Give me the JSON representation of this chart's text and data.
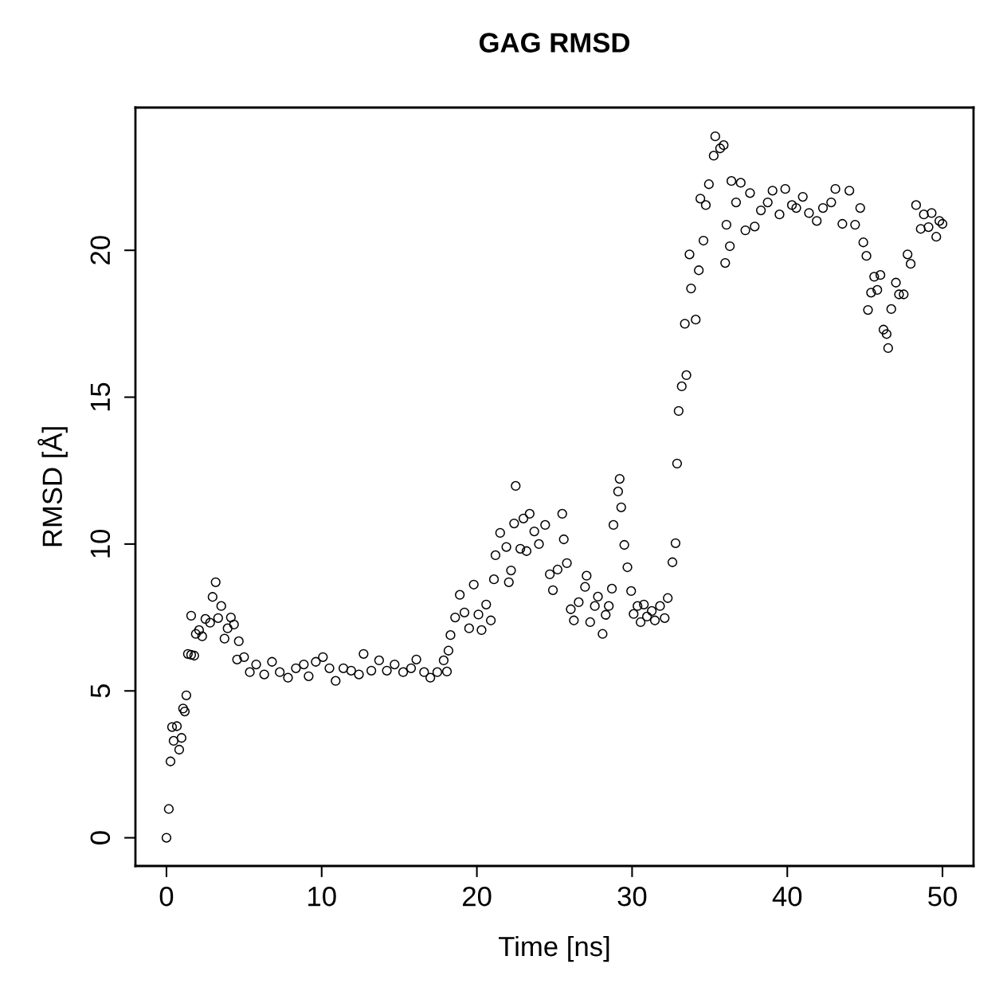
{
  "chart_data": {
    "type": "scatter",
    "title": "GAG RMSD",
    "xlabel": "Time [ns]",
    "ylabel": "RMSD [Å]",
    "xlim": [
      -2,
      52
    ],
    "ylim": [
      -0.96,
      24.86
    ],
    "xticks": [
      0,
      10,
      20,
      30,
      40,
      50
    ],
    "yticks": [
      0,
      5,
      10,
      15,
      20
    ],
    "grid": false,
    "legend": false,
    "marker": "circle",
    "series": [
      {
        "color": "#000000",
        "x": [
          0,
          0.15,
          0.26,
          0.36,
          0.46,
          0.67,
          0.82,
          0.97,
          1.07,
          1.18,
          1.28,
          1.38,
          1.59,
          1.59,
          1.79,
          1.89,
          2.1,
          2.3,
          2.51,
          2.81,
          2.97,
          3.17,
          3.33,
          3.53,
          3.74,
          3.94,
          4.15,
          4.35,
          4.66,
          4.55,
          5.0,
          5.37,
          5.78,
          6.3,
          6.8,
          7.3,
          7.83,
          8.34,
          8.85,
          9.16,
          9.62,
          10.08,
          10.5,
          10.9,
          11.4,
          11.9,
          12.4,
          12.7,
          13.2,
          13.7,
          14.2,
          14.7,
          15.25,
          15.76,
          16.1,
          16.6,
          17.0,
          17.45,
          17.86,
          18.07,
          18.17,
          18.3,
          18.6,
          18.9,
          19.2,
          19.5,
          19.8,
          20.1,
          20.3,
          20.6,
          20.9,
          21.1,
          21.2,
          21.5,
          21.9,
          22.06,
          22.2,
          22.4,
          22.5,
          22.8,
          23.0,
          23.2,
          23.4,
          23.7,
          24.0,
          24.4,
          24.7,
          24.9,
          25.2,
          25.5,
          25.6,
          25.8,
          26.05,
          26.25,
          26.56,
          26.97,
          27.07,
          27.3,
          27.6,
          27.8,
          28.1,
          28.3,
          28.5,
          28.7,
          28.8,
          29.1,
          29.2,
          29.3,
          29.5,
          29.7,
          29.94,
          30.1,
          30.35,
          30.55,
          30.76,
          30.96,
          31.27,
          31.47,
          31.8,
          32.1,
          32.3,
          32.6,
          32.8,
          32.9,
          33.0,
          33.2,
          33.4,
          33.5,
          33.7,
          33.8,
          34.1,
          34.3,
          34.4,
          34.6,
          34.75,
          34.95,
          35.26,
          35.36,
          35.67,
          35.9,
          36.0,
          36.08,
          36.3,
          36.4,
          36.7,
          37.0,
          37.3,
          37.6,
          37.9,
          38.3,
          38.74,
          39.05,
          39.5,
          39.87,
          40.3,
          40.58,
          41.0,
          41.4,
          41.9,
          42.3,
          42.83,
          43.1,
          43.55,
          44.0,
          44.37,
          44.7,
          44.9,
          45.1,
          45.2,
          45.4,
          45.6,
          45.8,
          46.0,
          46.2,
          46.4,
          46.5,
          46.7,
          47.0,
          47.2,
          47.5,
          47.75,
          47.95,
          48.3,
          48.6,
          48.8,
          49.1,
          49.3,
          49.6,
          49.8,
          50.0
        ],
        "values": [
          0,
          0.98,
          2.6,
          3.77,
          3.3,
          3.8,
          3.0,
          3.4,
          4.4,
          4.3,
          4.85,
          6.26,
          6.23,
          7.56,
          6.2,
          6.94,
          7.07,
          6.86,
          7.45,
          7.32,
          8.2,
          8.7,
          7.48,
          7.89,
          6.78,
          7.13,
          7.5,
          7.26,
          6.69,
          6.07,
          6.15,
          5.64,
          5.9,
          5.56,
          5.99,
          5.64,
          5.45,
          5.77,
          5.9,
          5.5,
          5.99,
          6.15,
          5.77,
          5.34,
          5.77,
          5.69,
          5.56,
          6.26,
          5.69,
          6.04,
          5.69,
          5.9,
          5.64,
          5.77,
          6.07,
          5.64,
          5.45,
          5.64,
          6.04,
          5.66,
          6.37,
          6.9,
          7.5,
          8.27,
          7.67,
          7.13,
          8.62,
          7.6,
          7.07,
          7.94,
          7.4,
          8.8,
          9.62,
          10.38,
          9.9,
          8.7,
          9.1,
          10.7,
          11.98,
          9.84,
          10.87,
          9.76,
          11.03,
          10.43,
          10.0,
          10.65,
          8.97,
          8.43,
          9.13,
          11.03,
          10.16,
          9.35,
          7.78,
          7.4,
          8.02,
          8.54,
          8.92,
          7.34,
          7.89,
          8.21,
          6.94,
          7.59,
          7.89,
          8.48,
          10.65,
          11.79,
          12.22,
          11.25,
          9.97,
          9.21,
          8.4,
          7.62,
          7.89,
          7.34,
          7.94,
          7.53,
          7.72,
          7.4,
          7.89,
          7.48,
          8.16,
          9.38,
          10.03,
          12.74,
          14.53,
          15.37,
          17.5,
          15.75,
          19.86,
          18.7,
          17.64,
          19.32,
          21.76,
          20.33,
          21.54,
          22.25,
          23.22,
          23.88,
          23.47,
          23.58,
          19.57,
          20.87,
          20.14,
          22.36,
          21.63,
          22.3,
          20.68,
          21.95,
          20.81,
          21.36,
          21.63,
          22.03,
          21.22,
          22.09,
          21.54,
          21.44,
          21.82,
          21.27,
          21.0,
          21.44,
          21.63,
          22.09,
          20.9,
          22.03,
          20.87,
          21.44,
          20.27,
          19.81,
          17.97,
          18.56,
          19.1,
          18.65,
          19.16,
          17.3,
          17.15,
          16.67,
          18.0,
          18.9,
          18.5,
          18.5,
          19.86,
          19.54,
          21.54,
          20.73,
          21.22,
          20.79,
          21.27,
          20.46,
          21.0,
          20.9
        ]
      }
    ]
  }
}
